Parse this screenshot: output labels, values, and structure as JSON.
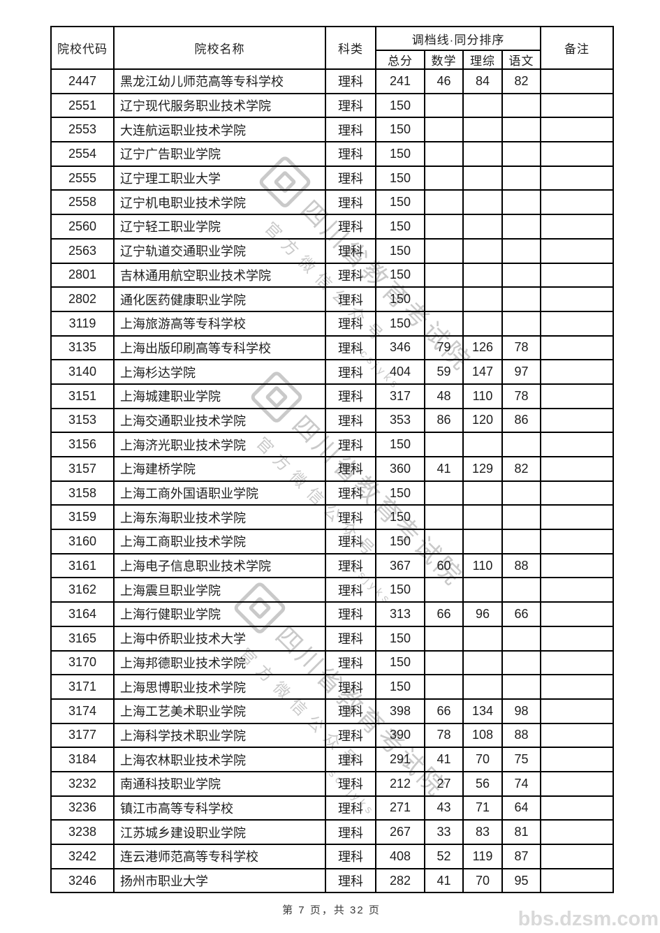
{
  "page": {
    "footer_text": "第 7 页，共 32 页",
    "site_watermark": "bbs.dzsm.com"
  },
  "watermark": {
    "line1": "四川省教育考试院",
    "line2": "官方微信公众号",
    "line3": "scsjyks",
    "color": "#c4c4c4"
  },
  "table": {
    "columns": {
      "code": "院校代码",
      "name": "院校名称",
      "category": "科类",
      "scores_group": "调档线·同分排序",
      "score_cols": [
        "总分",
        "数学",
        "理综",
        "语文"
      ],
      "remark": "备注"
    },
    "rows": [
      {
        "code": "2447",
        "name": "黑龙江幼儿师范高等专科学校",
        "category": "理科",
        "total": "241",
        "math": "46",
        "science": "84",
        "chinese": "82",
        "remark": ""
      },
      {
        "code": "2551",
        "name": "辽宁现代服务职业技术学院",
        "category": "理科",
        "total": "150",
        "math": "",
        "science": "",
        "chinese": "",
        "remark": ""
      },
      {
        "code": "2553",
        "name": "大连航运职业技术学院",
        "category": "理科",
        "total": "150",
        "math": "",
        "science": "",
        "chinese": "",
        "remark": ""
      },
      {
        "code": "2554",
        "name": "辽宁广告职业学院",
        "category": "理科",
        "total": "150",
        "math": "",
        "science": "",
        "chinese": "",
        "remark": ""
      },
      {
        "code": "2555",
        "name": "辽宁理工职业大学",
        "category": "理科",
        "total": "150",
        "math": "",
        "science": "",
        "chinese": "",
        "remark": ""
      },
      {
        "code": "2558",
        "name": "辽宁机电职业技术学院",
        "category": "理科",
        "total": "150",
        "math": "",
        "science": "",
        "chinese": "",
        "remark": ""
      },
      {
        "code": "2560",
        "name": "辽宁轻工职业学院",
        "category": "理科",
        "total": "150",
        "math": "",
        "science": "",
        "chinese": "",
        "remark": ""
      },
      {
        "code": "2563",
        "name": "辽宁轨道交通职业学院",
        "category": "理科",
        "total": "150",
        "math": "",
        "science": "",
        "chinese": "",
        "remark": ""
      },
      {
        "code": "2801",
        "name": "吉林通用航空职业技术学院",
        "category": "理科",
        "total": "150",
        "math": "",
        "science": "",
        "chinese": "",
        "remark": ""
      },
      {
        "code": "2802",
        "name": "通化医药健康职业学院",
        "category": "理科",
        "total": "150",
        "math": "",
        "science": "",
        "chinese": "",
        "remark": ""
      },
      {
        "code": "3119",
        "name": "上海旅游高等专科学校",
        "category": "理科",
        "total": "150",
        "math": "",
        "science": "",
        "chinese": "",
        "remark": ""
      },
      {
        "code": "3135",
        "name": "上海出版印刷高等专科学校",
        "category": "理科",
        "total": "346",
        "math": "79",
        "science": "126",
        "chinese": "78",
        "remark": ""
      },
      {
        "code": "3140",
        "name": "上海杉达学院",
        "category": "理科",
        "total": "404",
        "math": "59",
        "science": "147",
        "chinese": "97",
        "remark": ""
      },
      {
        "code": "3151",
        "name": "上海城建职业学院",
        "category": "理科",
        "total": "317",
        "math": "48",
        "science": "110",
        "chinese": "78",
        "remark": ""
      },
      {
        "code": "3153",
        "name": "上海交通职业技术学院",
        "category": "理科",
        "total": "353",
        "math": "86",
        "science": "120",
        "chinese": "86",
        "remark": ""
      },
      {
        "code": "3156",
        "name": "上海济光职业技术学院",
        "category": "理科",
        "total": "150",
        "math": "",
        "science": "",
        "chinese": "",
        "remark": ""
      },
      {
        "code": "3157",
        "name": "上海建桥学院",
        "category": "理科",
        "total": "360",
        "math": "41",
        "science": "129",
        "chinese": "82",
        "remark": ""
      },
      {
        "code": "3158",
        "name": "上海工商外国语职业学院",
        "category": "理科",
        "total": "150",
        "math": "",
        "science": "",
        "chinese": "",
        "remark": ""
      },
      {
        "code": "3159",
        "name": "上海东海职业技术学院",
        "category": "理科",
        "total": "150",
        "math": "",
        "science": "",
        "chinese": "",
        "remark": ""
      },
      {
        "code": "3160",
        "name": "上海工商职业技术学院",
        "category": "理科",
        "total": "150",
        "math": "",
        "science": "",
        "chinese": "",
        "remark": ""
      },
      {
        "code": "3161",
        "name": "上海电子信息职业技术学院",
        "category": "理科",
        "total": "367",
        "math": "60",
        "science": "110",
        "chinese": "88",
        "remark": ""
      },
      {
        "code": "3162",
        "name": "上海震旦职业学院",
        "category": "理科",
        "total": "150",
        "math": "",
        "science": "",
        "chinese": "",
        "remark": ""
      },
      {
        "code": "3164",
        "name": "上海行健职业学院",
        "category": "理科",
        "total": "313",
        "math": "66",
        "science": "96",
        "chinese": "66",
        "remark": ""
      },
      {
        "code": "3165",
        "name": "上海中侨职业技术大学",
        "category": "理科",
        "total": "150",
        "math": "",
        "science": "",
        "chinese": "",
        "remark": ""
      },
      {
        "code": "3170",
        "name": "上海邦德职业技术学院",
        "category": "理科",
        "total": "150",
        "math": "",
        "science": "",
        "chinese": "",
        "remark": ""
      },
      {
        "code": "3171",
        "name": "上海思博职业技术学院",
        "category": "理科",
        "total": "150",
        "math": "",
        "science": "",
        "chinese": "",
        "remark": ""
      },
      {
        "code": "3174",
        "name": "上海工艺美术职业学院",
        "category": "理科",
        "total": "398",
        "math": "66",
        "science": "134",
        "chinese": "98",
        "remark": ""
      },
      {
        "code": "3177",
        "name": "上海科学技术职业学院",
        "category": "理科",
        "total": "390",
        "math": "78",
        "science": "108",
        "chinese": "88",
        "remark": ""
      },
      {
        "code": "3184",
        "name": "上海农林职业技术学院",
        "category": "理科",
        "total": "291",
        "math": "41",
        "science": "70",
        "chinese": "75",
        "remark": ""
      },
      {
        "code": "3232",
        "name": "南通科技职业学院",
        "category": "理科",
        "total": "212",
        "math": "27",
        "science": "56",
        "chinese": "74",
        "remark": ""
      },
      {
        "code": "3236",
        "name": "镇江市高等专科学校",
        "category": "理科",
        "total": "271",
        "math": "43",
        "science": "71",
        "chinese": "64",
        "remark": ""
      },
      {
        "code": "3238",
        "name": "江苏城乡建设职业学院",
        "category": "理科",
        "total": "267",
        "math": "33",
        "science": "83",
        "chinese": "81",
        "remark": ""
      },
      {
        "code": "3242",
        "name": "连云港师范高等专科学校",
        "category": "理科",
        "total": "408",
        "math": "52",
        "science": "119",
        "chinese": "87",
        "remark": ""
      },
      {
        "code": "3246",
        "name": "扬州市职业大学",
        "category": "理科",
        "total": "282",
        "math": "41",
        "science": "70",
        "chinese": "95",
        "remark": ""
      }
    ]
  }
}
